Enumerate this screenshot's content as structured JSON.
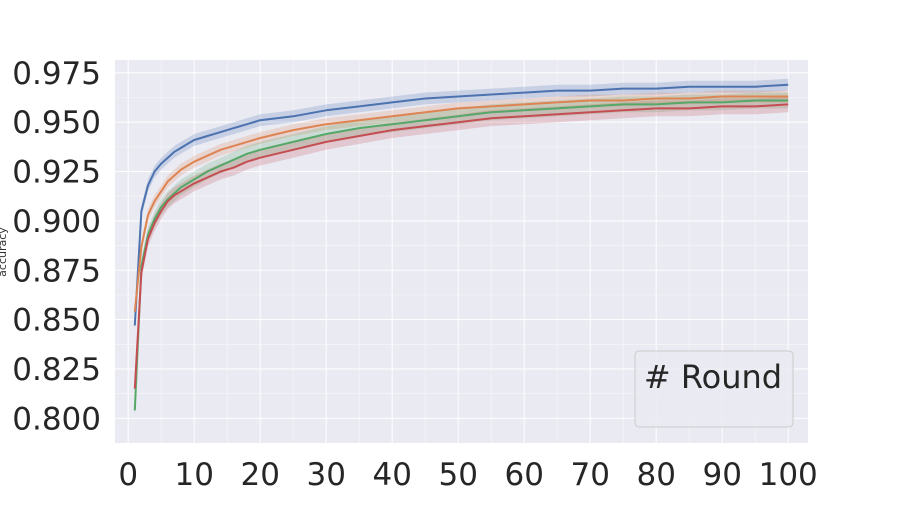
{
  "chart_data": {
    "type": "line",
    "title": "",
    "xlabel": "",
    "ylabel": "accuracy",
    "xlim": [
      -2,
      103
    ],
    "ylim": [
      0.7875,
      0.9815
    ],
    "x_ticks": [
      0,
      10,
      20,
      30,
      40,
      50,
      60,
      70,
      80,
      90,
      100
    ],
    "y_ticks": [
      0.8,
      0.825,
      0.85,
      0.875,
      0.9,
      0.925,
      0.95,
      0.975
    ],
    "y_tick_labels": [
      "0.800",
      "0.825",
      "0.850",
      "0.875",
      "0.900",
      "0.925",
      "0.950",
      "0.975"
    ],
    "grid": true,
    "legend": {
      "title": "# Round",
      "placement": "bottom-right"
    },
    "series": [
      {
        "color": "#4c72b0",
        "x": [
          1,
          2,
          3,
          4,
          5,
          6,
          7,
          8,
          9,
          10,
          12,
          14,
          16,
          18,
          20,
          25,
          30,
          35,
          40,
          45,
          50,
          55,
          60,
          65,
          70,
          75,
          80,
          85,
          90,
          95,
          100
        ],
        "values": [
          0.847,
          0.905,
          0.918,
          0.925,
          0.929,
          0.932,
          0.935,
          0.937,
          0.939,
          0.941,
          0.943,
          0.945,
          0.947,
          0.949,
          0.951,
          0.953,
          0.956,
          0.958,
          0.96,
          0.962,
          0.963,
          0.964,
          0.965,
          0.966,
          0.966,
          0.967,
          0.967,
          0.968,
          0.968,
          0.968,
          0.969
        ],
        "band": 0.003
      },
      {
        "color": "#dd8452",
        "x": [
          1,
          2,
          3,
          4,
          5,
          6,
          7,
          8,
          9,
          10,
          12,
          14,
          16,
          18,
          20,
          25,
          30,
          35,
          40,
          45,
          50,
          55,
          60,
          65,
          70,
          75,
          80,
          85,
          90,
          95,
          100
        ],
        "values": [
          0.854,
          0.887,
          0.903,
          0.91,
          0.915,
          0.92,
          0.923,
          0.926,
          0.928,
          0.93,
          0.933,
          0.936,
          0.938,
          0.94,
          0.942,
          0.946,
          0.949,
          0.951,
          0.953,
          0.955,
          0.957,
          0.958,
          0.959,
          0.96,
          0.961,
          0.961,
          0.962,
          0.962,
          0.963,
          0.963,
          0.963
        ],
        "band": 0.003
      },
      {
        "color": "#55a868",
        "x": [
          1,
          2,
          3,
          4,
          5,
          6,
          7,
          8,
          9,
          10,
          12,
          14,
          16,
          18,
          20,
          25,
          30,
          35,
          40,
          45,
          50,
          55,
          60,
          65,
          70,
          75,
          80,
          85,
          90,
          95,
          100
        ],
        "values": [
          0.804,
          0.877,
          0.893,
          0.901,
          0.907,
          0.911,
          0.914,
          0.917,
          0.919,
          0.921,
          0.925,
          0.928,
          0.931,
          0.934,
          0.936,
          0.94,
          0.944,
          0.947,
          0.949,
          0.951,
          0.953,
          0.955,
          0.956,
          0.957,
          0.958,
          0.959,
          0.959,
          0.96,
          0.96,
          0.961,
          0.961
        ],
        "band": 0.004
      },
      {
        "color": "#c44e52",
        "x": [
          1,
          2,
          3,
          4,
          5,
          6,
          7,
          8,
          9,
          10,
          12,
          14,
          16,
          18,
          20,
          25,
          30,
          35,
          40,
          45,
          50,
          55,
          60,
          65,
          70,
          75,
          80,
          85,
          90,
          95,
          100
        ],
        "values": [
          0.815,
          0.874,
          0.891,
          0.899,
          0.905,
          0.91,
          0.913,
          0.915,
          0.917,
          0.919,
          0.922,
          0.925,
          0.927,
          0.93,
          0.932,
          0.936,
          0.94,
          0.943,
          0.946,
          0.948,
          0.95,
          0.952,
          0.953,
          0.954,
          0.955,
          0.956,
          0.957,
          0.957,
          0.958,
          0.958,
          0.959
        ],
        "band": 0.004
      }
    ]
  }
}
